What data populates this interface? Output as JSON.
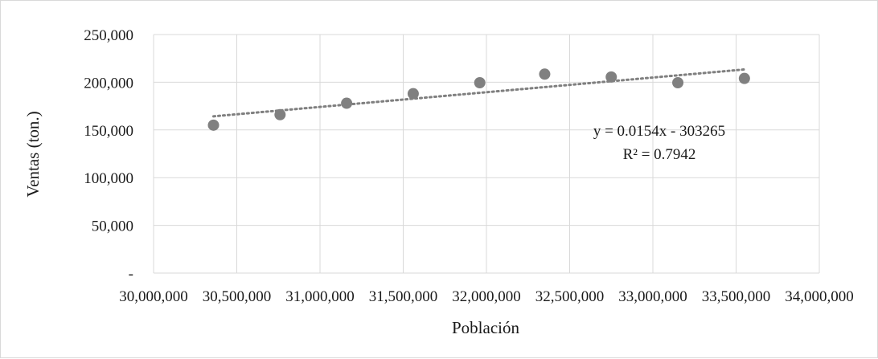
{
  "chart_data": {
    "type": "scatter",
    "title": "",
    "xlabel": "Población",
    "ylabel": "Ventas (ton.)",
    "xlim": [
      30000000,
      34000000
    ],
    "ylim": [
      0,
      250000
    ],
    "x_ticks": [
      30000000,
      30500000,
      31000000,
      31500000,
      32000000,
      32500000,
      33000000,
      33500000,
      34000000
    ],
    "x_tick_labels": [
      "30,000,000",
      "30,500,000",
      "31,000,000",
      "31,500,000",
      "32,000,000",
      "32,500,000",
      "33,000,000",
      "33,500,000",
      "34,000,000"
    ],
    "y_ticks": [
      0,
      50000,
      100000,
      150000,
      200000,
      250000
    ],
    "y_tick_labels": [
      "-",
      "50,000",
      "100,000",
      "150,000",
      "200,000",
      "250,000"
    ],
    "grid": "vertical-and-horizontal",
    "points": [
      {
        "x": 30360000,
        "y": 155000
      },
      {
        "x": 30760000,
        "y": 166000
      },
      {
        "x": 31160000,
        "y": 178000
      },
      {
        "x": 31560000,
        "y": 188000
      },
      {
        "x": 31960000,
        "y": 199500
      },
      {
        "x": 32350000,
        "y": 208500
      },
      {
        "x": 32750000,
        "y": 205500
      },
      {
        "x": 33150000,
        "y": 199500
      },
      {
        "x": 33550000,
        "y": 204000
      }
    ],
    "trendline": {
      "type": "linear",
      "slope": 0.0154,
      "intercept": -303265,
      "equation": "y = 0.0154x - 303265",
      "r_squared": "R² = 0.7942"
    },
    "colors": {
      "marker": "#808080",
      "trendline": "#7f7f7f",
      "grid": "#d9d9d9",
      "frame": "#d9d9d9"
    }
  }
}
